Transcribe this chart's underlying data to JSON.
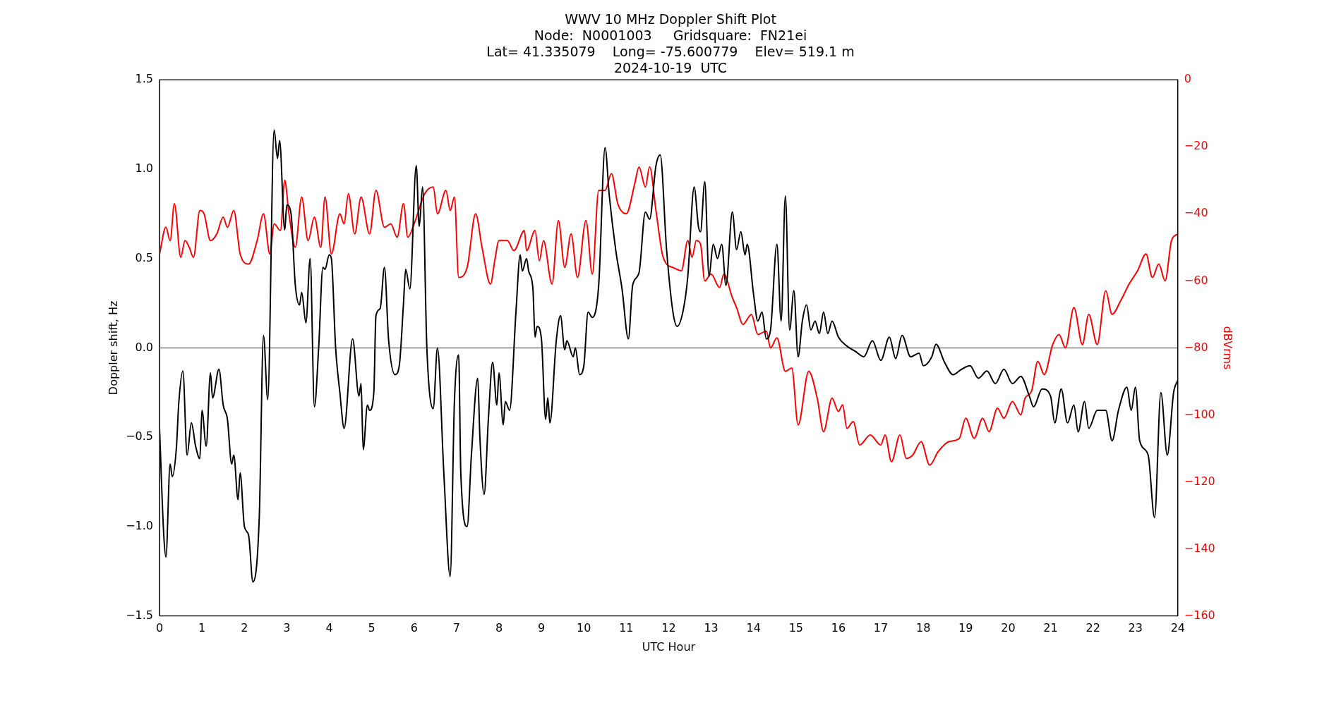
{
  "chart_data": {
    "type": "line",
    "title": "WWV 10 MHz Doppler Shift Plot\nNode:  N0001003     Gridsquare:  FN21ei\nLat= 41.335079    Long= -75.600779    Elev= 519.1 m\n2024-10-19  UTC",
    "xlabel": "UTC Hour",
    "ylabel": "Doppler shift, Hz",
    "y2label": "dBVrms",
    "xlim": [
      0,
      24
    ],
    "xticks": [
      0,
      1,
      2,
      3,
      4,
      5,
      6,
      7,
      8,
      9,
      10,
      11,
      12,
      13,
      14,
      15,
      16,
      17,
      18,
      19,
      20,
      21,
      22,
      23,
      24
    ],
    "ylim": [
      -1.5,
      1.5
    ],
    "yticks": [
      {
        "value": -1.5,
        "label": "−1.5"
      },
      {
        "value": -1,
        "label": "−1.0"
      },
      {
        "value": -0.5,
        "label": "−0.5"
      },
      {
        "value": 0,
        "label": "0.0"
      },
      {
        "value": 0.5,
        "label": "0.5"
      },
      {
        "value": 1,
        "label": "1.0"
      },
      {
        "value": 1.5,
        "label": "1.5"
      }
    ],
    "y2lim": [
      -160,
      0
    ],
    "y2ticks": [
      {
        "value": -160,
        "label": "−160"
      },
      {
        "value": -140,
        "label": "−140"
      },
      {
        "value": -120,
        "label": "−120"
      },
      {
        "value": -100,
        "label": "−100"
      },
      {
        "value": -80,
        "label": "−80"
      },
      {
        "value": -60,
        "label": "−60"
      },
      {
        "value": -40,
        "label": "−40"
      },
      {
        "value": -20,
        "label": "−20"
      },
      0
    ],
    "grid": false,
    "legend": false,
    "marker": "none",
    "line_style": "solid",
    "ref_lines": [
      {
        "axis": "y",
        "value": 0,
        "color": "#808080"
      }
    ],
    "series": [
      {
        "color": "#000000",
        "x": [
          0,
          0.1,
          0.15,
          0.25,
          0.3,
          0.4,
          0.45,
          0.55,
          0.65,
          0.75,
          0.85,
          0.95,
          1.0,
          1.1,
          1.2,
          1.25,
          1.4,
          1.5,
          1.6,
          1.7,
          1.75,
          1.85,
          1.9,
          2.0,
          2.1,
          2.2,
          2.35,
          2.45,
          2.55,
          2.7,
          2.78,
          2.83,
          2.95,
          3.0,
          3.1,
          3.2,
          3.3,
          3.35,
          3.45,
          3.55,
          3.65,
          3.75,
          3.85,
          3.9,
          4.0,
          4.05,
          4.15,
          4.25,
          4.35,
          4.55,
          4.7,
          4.75,
          4.8,
          4.9,
          4.95,
          5.05,
          5.1,
          5.2,
          5.3,
          5.4,
          5.55,
          5.65,
          5.75,
          5.8,
          5.9,
          6.05,
          6.12,
          6.2,
          6.3,
          6.45,
          6.55,
          6.7,
          6.85,
          6.95,
          7.05,
          7.1,
          7.25,
          7.35,
          7.5,
          7.55,
          7.65,
          7.75,
          7.85,
          7.95,
          8.0,
          8.1,
          8.15,
          8.25,
          8.4,
          8.5,
          8.55,
          8.65,
          8.7,
          8.8,
          8.85,
          8.9,
          9.0,
          9.1,
          9.15,
          9.2,
          9.35,
          9.45,
          9.55,
          9.6,
          9.75,
          9.8,
          9.9,
          10.0,
          10.1,
          10.2,
          10.35,
          10.5,
          10.6,
          10.75,
          10.9,
          11.05,
          11.15,
          11.3,
          11.45,
          11.55,
          11.7,
          11.8,
          11.95,
          12.1,
          12.2,
          12.35,
          12.45,
          12.6,
          12.7,
          12.75,
          12.85,
          12.95,
          13.05,
          13.15,
          13.25,
          13.35,
          13.5,
          13.6,
          13.7,
          13.8,
          13.85,
          14.0,
          14.1,
          14.2,
          14.3,
          14.4,
          14.55,
          14.65,
          14.75,
          14.85,
          14.95,
          15.05,
          15.15,
          15.25,
          15.35,
          15.45,
          15.55,
          15.65,
          15.75,
          15.85,
          16.0,
          16.2,
          16.4,
          16.6,
          16.8,
          17.0,
          17.2,
          17.35,
          17.5,
          17.7,
          17.9,
          18.0,
          18.2,
          18.3,
          18.5,
          18.7,
          18.9,
          19.1,
          19.3,
          19.5,
          19.7,
          19.9,
          20.1,
          20.3,
          20.5,
          20.6,
          20.8,
          21.0,
          21.1,
          21.25,
          21.4,
          21.55,
          21.65,
          21.8,
          21.9,
          22.1,
          22.3,
          22.45,
          22.6,
          22.8,
          22.9,
          23.0,
          23.1,
          23.3,
          23.45,
          23.6,
          23.75,
          23.9,
          24.0
        ],
        "values": [
          -0.45,
          -1.05,
          -1.17,
          -0.65,
          -0.72,
          -0.55,
          -0.32,
          -0.13,
          -0.6,
          -0.42,
          -0.55,
          -0.62,
          -0.35,
          -0.55,
          -0.14,
          -0.28,
          -0.12,
          -0.32,
          -0.4,
          -0.65,
          -0.6,
          -0.85,
          -0.7,
          -1.0,
          -1.05,
          -1.31,
          -0.95,
          0.07,
          -0.29,
          1.22,
          1.06,
          1.16,
          0.66,
          0.8,
          0.75,
          0.35,
          0.24,
          0.31,
          0.14,
          0.5,
          -0.33,
          0.0,
          0.45,
          0.44,
          0.52,
          0.5,
          0.0,
          -0.25,
          -0.45,
          0.05,
          -0.27,
          -0.2,
          -0.57,
          -0.32,
          -0.35,
          -0.25,
          0.18,
          0.22,
          0.45,
          0.04,
          -0.15,
          -0.1,
          0.25,
          0.44,
          0.33,
          1.02,
          0.68,
          0.9,
          0.0,
          -0.34,
          0.0,
          -0.7,
          -1.28,
          -0.3,
          -0.04,
          -0.7,
          -1.0,
          -0.6,
          -0.17,
          -0.5,
          -0.82,
          -0.4,
          -0.08,
          -0.32,
          -0.14,
          -0.43,
          -0.3,
          -0.35,
          0.2,
          0.52,
          0.43,
          0.5,
          0.43,
          0.33,
          0.06,
          0.12,
          0.05,
          -0.4,
          -0.28,
          -0.42,
          0.04,
          0.18,
          -0.01,
          0.04,
          -0.05,
          0.0,
          -0.15,
          -0.1,
          0.2,
          0.17,
          0.35,
          1.12,
          0.85,
          0.55,
          0.33,
          0.05,
          0.35,
          0.42,
          0.76,
          0.72,
          1.02,
          1.08,
          0.55,
          0.2,
          0.12,
          0.22,
          0.4,
          0.9,
          0.68,
          0.65,
          0.93,
          0.4,
          0.58,
          0.5,
          0.58,
          0.35,
          0.76,
          0.55,
          0.65,
          0.52,
          0.58,
          0.3,
          0.15,
          0.2,
          0.05,
          0.1,
          0.58,
          0.15,
          0.85,
          0.1,
          0.32,
          -0.05,
          0.15,
          0.24,
          0.1,
          0.15,
          0.08,
          0.2,
          0.08,
          0.15,
          0.06,
          0.01,
          -0.02,
          -0.05,
          0.04,
          -0.07,
          0.06,
          -0.06,
          0.07,
          -0.05,
          -0.03,
          -0.1,
          -0.05,
          0.02,
          -0.08,
          -0.15,
          -0.12,
          -0.1,
          -0.17,
          -0.13,
          -0.2,
          -0.12,
          -0.2,
          -0.16,
          -0.27,
          -0.33,
          -0.23,
          -0.27,
          -0.42,
          -0.23,
          -0.42,
          -0.32,
          -0.47,
          -0.3,
          -0.45,
          -0.35,
          -0.35,
          -0.52,
          -0.35,
          -0.22,
          -0.35,
          -0.22,
          -0.52,
          -0.6,
          -0.95,
          -0.25,
          -0.6,
          -0.25,
          -0.18
        ]
      },
      {
        "color": "#ff0000",
        "axis": "y2",
        "x": [
          0,
          0.15,
          0.25,
          0.35,
          0.5,
          0.6,
          0.7,
          0.8,
          0.95,
          1.05,
          1.2,
          1.35,
          1.5,
          1.6,
          1.75,
          1.9,
          2.1,
          2.3,
          2.45,
          2.6,
          2.7,
          2.85,
          2.95,
          3.05,
          3.2,
          3.35,
          3.5,
          3.65,
          3.8,
          3.9,
          4.05,
          4.25,
          4.35,
          4.45,
          4.6,
          4.75,
          4.95,
          5.1,
          5.3,
          5.45,
          5.6,
          5.75,
          5.85,
          6.0,
          6.25,
          6.45,
          6.55,
          6.75,
          6.85,
          6.95,
          7.05,
          7.25,
          7.45,
          7.6,
          7.8,
          7.9,
          8.0,
          8.2,
          8.35,
          8.6,
          8.65,
          8.85,
          8.95,
          9.05,
          9.25,
          9.4,
          9.55,
          9.7,
          9.85,
          10.05,
          10.2,
          10.35,
          10.5,
          10.65,
          10.8,
          11.0,
          11.2,
          11.3,
          11.45,
          11.55,
          11.7,
          11.85,
          11.95,
          12.1,
          12.3,
          12.45,
          12.55,
          12.65,
          12.75,
          12.85,
          13.0,
          13.2,
          13.3,
          13.5,
          13.6,
          13.75,
          13.95,
          14.1,
          14.3,
          14.4,
          14.55,
          14.75,
          14.9,
          15.05,
          15.3,
          15.5,
          15.65,
          15.85,
          16.0,
          16.1,
          16.2,
          16.35,
          16.5,
          16.75,
          17.0,
          17.1,
          17.25,
          17.45,
          17.6,
          17.75,
          17.95,
          18.15,
          18.35,
          18.6,
          18.85,
          19.0,
          19.2,
          19.4,
          19.55,
          19.75,
          19.9,
          20.1,
          20.3,
          20.4,
          20.55,
          20.7,
          20.85,
          21.05,
          21.2,
          21.35,
          21.55,
          21.75,
          21.9,
          22.1,
          22.3,
          22.45,
          22.65,
          22.85,
          23.05,
          23.25,
          23.4,
          23.55,
          23.7,
          23.85,
          24.0
        ],
        "values": [
          -52,
          -44,
          -48,
          -37,
          -53,
          -48,
          -50,
          -53,
          -39,
          -40,
          -48,
          -46,
          -41,
          -44,
          -39,
          -52,
          -55,
          -48,
          -40,
          -52,
          -43,
          -45,
          -30,
          -40,
          -50,
          -35,
          -48,
          -41,
          -50,
          -35,
          -52,
          -40,
          -43,
          -34,
          -46,
          -35,
          -46,
          -33,
          -44,
          -43,
          -47,
          -37,
          -47,
          -43,
          -34,
          -32,
          -40,
          -33,
          -39,
          -35,
          -59,
          -56,
          -40,
          -50,
          -61,
          -54,
          -48,
          -48,
          -51,
          -45,
          -51,
          -45,
          -54,
          -48,
          -61,
          -42,
          -56,
          -46,
          -59,
          -42,
          -58,
          -33,
          -33,
          -28,
          -37,
          -40,
          -31,
          -26,
          -32,
          -26,
          -39,
          -52,
          -55,
          -56,
          -57,
          -48,
          -53,
          -48,
          -49,
          -60,
          -58,
          -62,
          -58,
          -65,
          -68,
          -73,
          -70,
          -76,
          -75,
          -80,
          -77,
          -87,
          -86,
          -103,
          -87,
          -95,
          -105,
          -95,
          -99,
          -97,
          -104,
          -102,
          -109,
          -106,
          -109,
          -106,
          -114,
          -106,
          -113,
          -112,
          -108,
          -115,
          -111,
          -108,
          -107,
          -101,
          -107,
          -101,
          -105,
          -98,
          -101,
          -96,
          -100,
          -95,
          -93,
          -84,
          -88,
          -79,
          -76,
          -80,
          -68,
          -79,
          -70,
          -79,
          -63,
          -70,
          -66,
          -61,
          -57,
          -52,
          -59,
          -55,
          -60,
          -48,
          -46
        ]
      }
    ]
  }
}
